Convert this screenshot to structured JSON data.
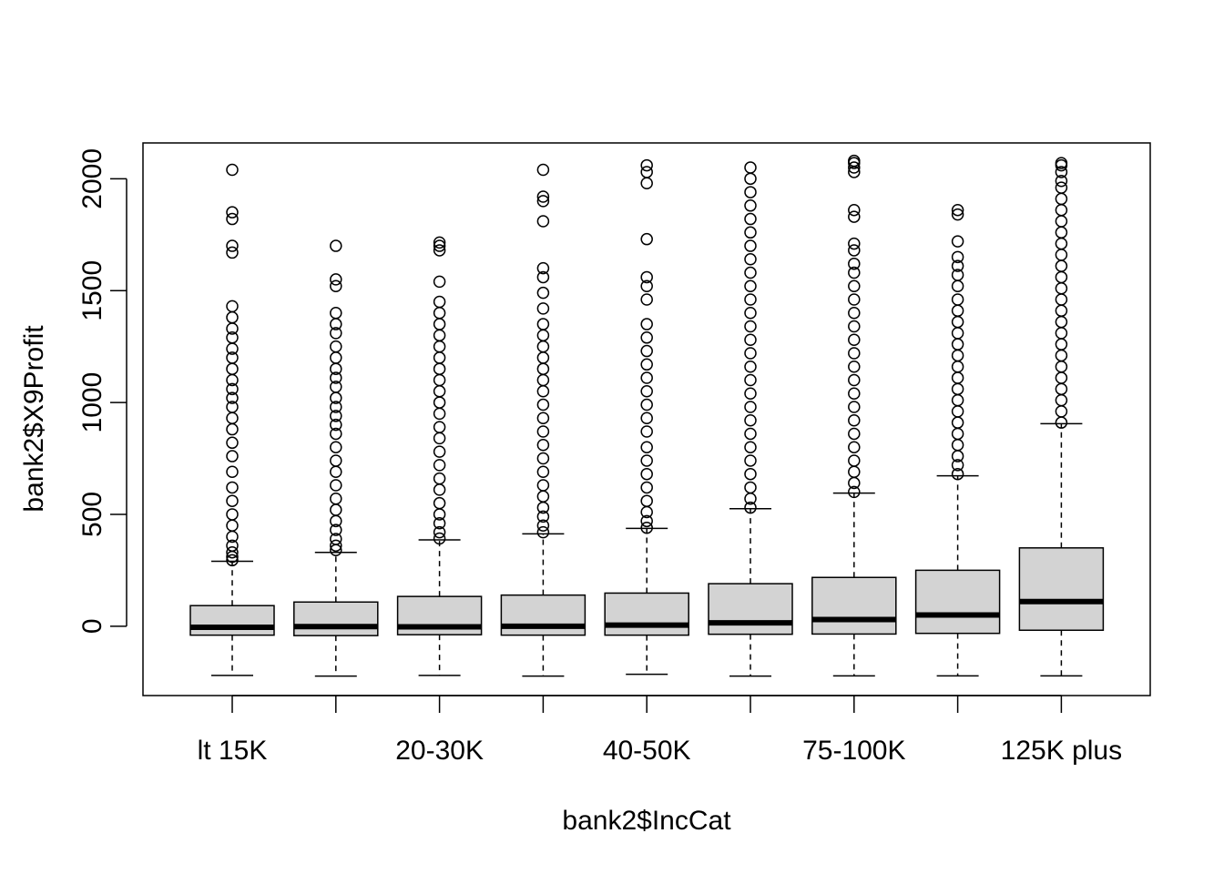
{
  "chart_data": {
    "type": "boxplot",
    "xlabel": "bank2$IncCat",
    "ylabel": "bank2$X9Profit",
    "y_ticks": [
      0,
      500,
      1000,
      1500,
      2000
    ],
    "ylim": [
      -310,
      2160
    ],
    "x_tick_labels": [
      "lt 15K",
      "",
      "20-30K",
      "",
      "40-50K",
      "",
      "75-100K",
      "",
      "125K plus"
    ],
    "box_fill": "#d3d3d3",
    "groups": [
      {
        "q1": -40,
        "median": -5,
        "q3": 92,
        "whisker_low": -220,
        "whisker_high": 290,
        "outliers": [
          295,
          310,
          330,
          360,
          400,
          450,
          500,
          560,
          620,
          690,
          760,
          820,
          880,
          930,
          980,
          1020,
          1060,
          1100,
          1150,
          1200,
          1240,
          1290,
          1330,
          1380,
          1430,
          1670,
          1700,
          1820,
          1850,
          2040
        ]
      },
      {
        "q1": -42,
        "median": -2,
        "q3": 108,
        "whisker_low": -223,
        "whisker_high": 330,
        "outliers": [
          340,
          360,
          390,
          430,
          470,
          520,
          570,
          630,
          690,
          740,
          800,
          860,
          900,
          940,
          980,
          1020,
          1070,
          1110,
          1150,
          1200,
          1250,
          1310,
          1350,
          1400,
          1520,
          1550,
          1700
        ]
      },
      {
        "q1": -38,
        "median": -3,
        "q3": 133,
        "whisker_low": -220,
        "whisker_high": 386,
        "outliers": [
          392,
          420,
          460,
          500,
          550,
          610,
          660,
          720,
          780,
          840,
          890,
          950,
          1000,
          1050,
          1100,
          1150,
          1200,
          1250,
          1300,
          1350,
          1400,
          1450,
          1540,
          1680,
          1700,
          1715
        ]
      },
      {
        "q1": -40,
        "median": 0,
        "q3": 139,
        "whisker_low": -223,
        "whisker_high": 413,
        "outliers": [
          420,
          450,
          490,
          530,
          580,
          630,
          690,
          750,
          810,
          870,
          930,
          990,
          1050,
          1100,
          1150,
          1200,
          1250,
          1300,
          1350,
          1420,
          1490,
          1560,
          1600,
          1810,
          1900,
          1920,
          2040
        ]
      },
      {
        "q1": -40,
        "median": 5,
        "q3": 148,
        "whisker_low": -215,
        "whisker_high": 437,
        "outliers": [
          440,
          470,
          510,
          560,
          620,
          680,
          740,
          800,
          870,
          930,
          990,
          1050,
          1110,
          1170,
          1230,
          1290,
          1350,
          1460,
          1520,
          1560,
          1730,
          1980,
          2030,
          2060
        ]
      },
      {
        "q1": -36,
        "median": 15,
        "q3": 190,
        "whisker_low": -223,
        "whisker_high": 525,
        "outliers": [
          530,
          570,
          620,
          680,
          740,
          800,
          860,
          920,
          980,
          1040,
          1100,
          1160,
          1220,
          1280,
          1340,
          1400,
          1460,
          1520,
          1580,
          1640,
          1700,
          1760,
          1820,
          1880,
          1940,
          2000,
          2050
        ]
      },
      {
        "q1": -35,
        "median": 30,
        "q3": 218,
        "whisker_low": -222,
        "whisker_high": 595,
        "outliers": [
          600,
          640,
          690,
          740,
          800,
          860,
          920,
          980,
          1040,
          1100,
          1160,
          1220,
          1280,
          1340,
          1400,
          1460,
          1520,
          1580,
          1620,
          1680,
          1710,
          1830,
          1860,
          2030,
          2050,
          2070,
          2080
        ]
      },
      {
        "q1": -32,
        "median": 50,
        "q3": 250,
        "whisker_low": -222,
        "whisker_high": 672,
        "outliers": [
          680,
          720,
          760,
          810,
          860,
          910,
          960,
          1010,
          1060,
          1110,
          1160,
          1210,
          1260,
          1310,
          1360,
          1410,
          1460,
          1520,
          1570,
          1610,
          1650,
          1720,
          1840,
          1860
        ]
      },
      {
        "q1": -18,
        "median": 110,
        "q3": 350,
        "whisker_low": -222,
        "whisker_high": 905,
        "outliers": [
          910,
          960,
          1010,
          1060,
          1110,
          1160,
          1210,
          1260,
          1310,
          1360,
          1410,
          1460,
          1510,
          1560,
          1610,
          1660,
          1710,
          1760,
          1810,
          1860,
          1910,
          1960,
          1990,
          2030,
          2060,
          2070
        ]
      }
    ]
  }
}
